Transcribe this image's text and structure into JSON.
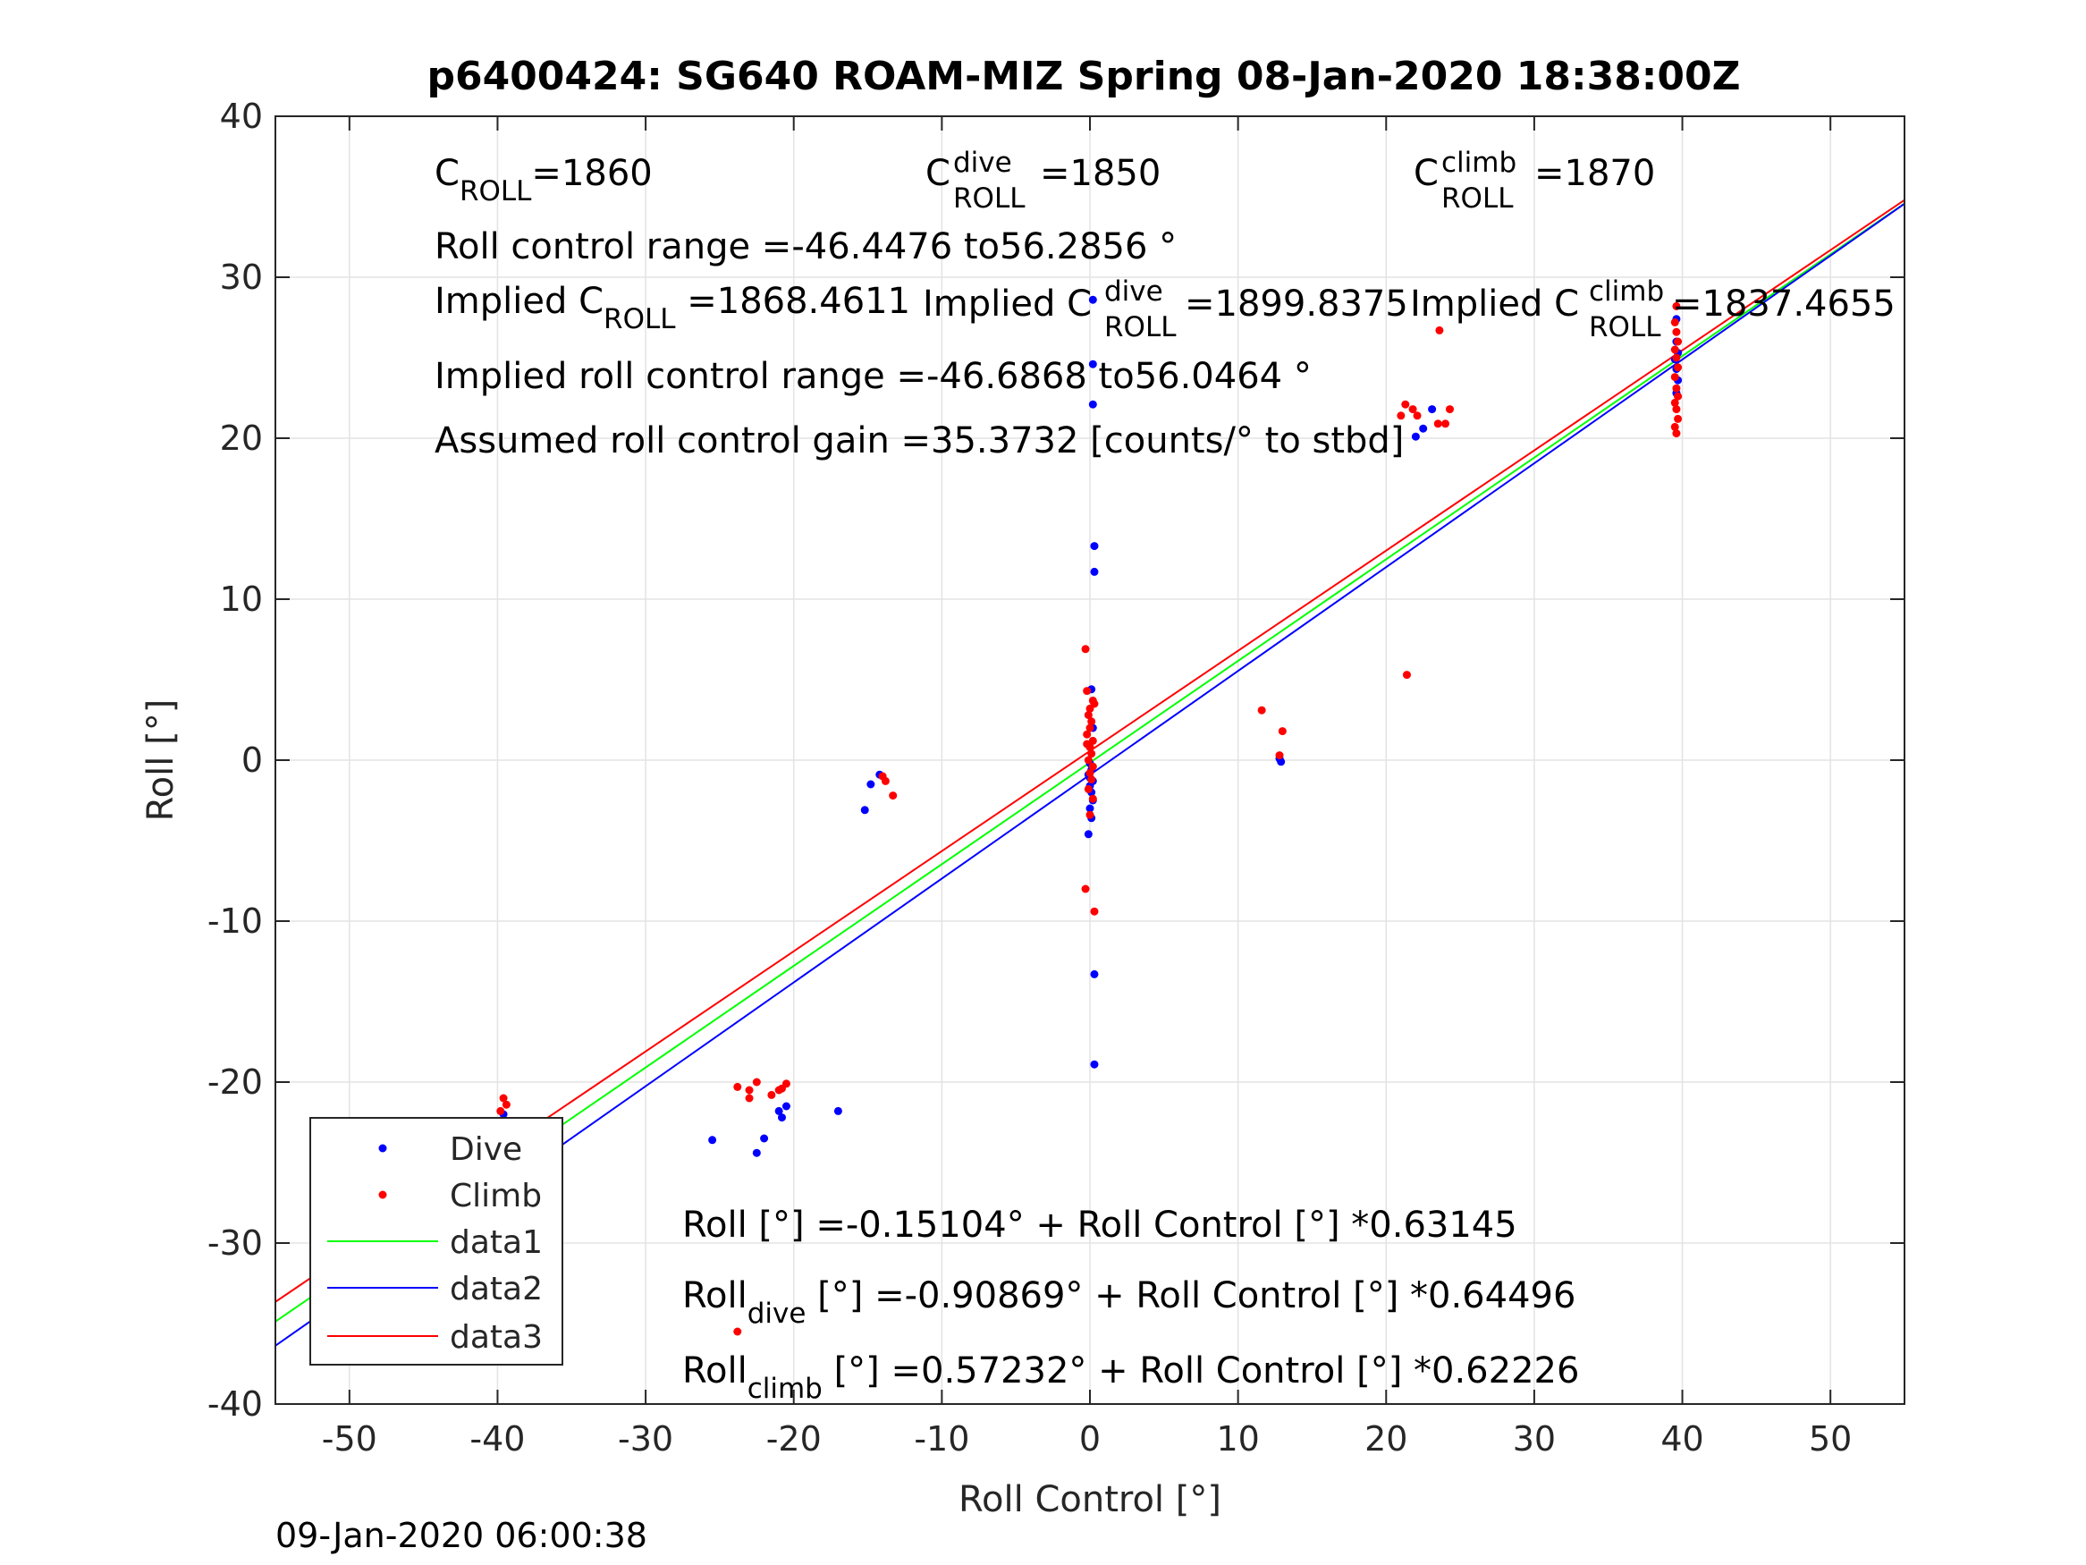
{
  "chart_data": {
    "type": "scatter",
    "title": "p6400424: SG640 ROAM-MIZ Spring 08-Jan-2020 18:38:00Z",
    "xlabel": "Roll Control [°]",
    "ylabel": "Roll [°]",
    "xlim": [
      -55,
      55
    ],
    "ylim": [
      -40,
      40
    ],
    "xticks": [
      -50,
      -40,
      -30,
      -20,
      -10,
      0,
      10,
      20,
      30,
      40,
      50
    ],
    "yticks": [
      -40,
      -30,
      -20,
      -10,
      0,
      10,
      20,
      30,
      40
    ],
    "xtick_labels": [
      "-50",
      "-40",
      "-30",
      "-20",
      "-10",
      "0",
      "10",
      "20",
      "30",
      "40",
      "50"
    ],
    "ytick_labels": [
      "-40",
      "-30",
      "-20",
      "-10",
      "0",
      "10",
      "20",
      "30",
      "40"
    ],
    "grid": true,
    "legend_placement": "bottom-left",
    "timestamp": "09-Jan-2020 06:00:38",
    "colors": {
      "dive": "#0000ff",
      "climb": "#ff0000",
      "data1": "#00ff00",
      "data2": "#0000ff",
      "data3": "#ff0000"
    },
    "series": [
      {
        "name": "Dive",
        "kind": "points",
        "color": "#0000ff",
        "points": [
          [
            -39.6,
            -22.0
          ],
          [
            -39.6,
            -23.0
          ],
          [
            -39.7,
            -24.0
          ],
          [
            -39.5,
            -25.0
          ],
          [
            -39.6,
            -26.0
          ],
          [
            -39.7,
            -27.0
          ],
          [
            -39.6,
            -28.0
          ],
          [
            -39.4,
            -25.5
          ],
          [
            -39.8,
            -23.5
          ],
          [
            -39.6,
            -27.5
          ],
          [
            -25.5,
            -23.6
          ],
          [
            -22.5,
            -24.4
          ],
          [
            -22.0,
            -23.5
          ],
          [
            -21.0,
            -21.8
          ],
          [
            -20.8,
            -22.2
          ],
          [
            -20.5,
            -21.5
          ],
          [
            -17.0,
            -21.8
          ],
          [
            -15.2,
            -3.1
          ],
          [
            -14.8,
            -1.5
          ],
          [
            -14.2,
            -0.9
          ],
          [
            0.0,
            -0.2
          ],
          [
            0.1,
            -0.6
          ],
          [
            -0.1,
            -0.9
          ],
          [
            0.2,
            -1.3
          ],
          [
            0.0,
            -1.6
          ],
          [
            0.1,
            -2.0
          ],
          [
            0.2,
            -2.5
          ],
          [
            0.0,
            -3.0
          ],
          [
            0.1,
            -3.6
          ],
          [
            -0.1,
            -4.6
          ],
          [
            0.2,
            2.0
          ],
          [
            0.1,
            4.4
          ],
          [
            0.0,
            -1.1
          ],
          [
            0.3,
            -13.3
          ],
          [
            0.3,
            -18.9
          ],
          [
            0.3,
            11.7
          ],
          [
            0.3,
            13.3
          ],
          [
            0.2,
            22.1
          ],
          [
            0.2,
            24.6
          ],
          [
            0.2,
            28.6
          ],
          [
            12.8,
            0.1
          ],
          [
            12.9,
            -0.1
          ],
          [
            22.5,
            20.6
          ],
          [
            22.0,
            20.1
          ],
          [
            23.1,
            21.8
          ],
          [
            39.6,
            22.8
          ],
          [
            39.7,
            23.6
          ],
          [
            39.6,
            24.3
          ],
          [
            39.5,
            24.9
          ],
          [
            39.7,
            25.3
          ],
          [
            39.6,
            26.0
          ],
          [
            39.6,
            27.4
          ]
        ]
      },
      {
        "name": "Climb",
        "kind": "points",
        "color": "#ff0000",
        "points": [
          [
            -39.6,
            -21.0
          ],
          [
            -39.4,
            -21.4
          ],
          [
            -39.8,
            -21.8
          ],
          [
            -39.6,
            -22.4
          ],
          [
            -39.5,
            -23.0
          ],
          [
            -39.7,
            -23.6
          ],
          [
            -39.6,
            -24.2
          ],
          [
            -39.4,
            -24.8
          ],
          [
            -39.8,
            -25.4
          ],
          [
            -39.6,
            -26.0
          ],
          [
            -39.5,
            -26.6
          ],
          [
            -39.7,
            -27.2
          ],
          [
            -39.6,
            -22.7
          ],
          [
            -23.8,
            -20.3
          ],
          [
            -23.0,
            -20.5
          ],
          [
            -22.5,
            -20.0
          ],
          [
            -23.0,
            -21.0
          ],
          [
            -21.5,
            -20.8
          ],
          [
            -21.0,
            -20.5
          ],
          [
            -20.5,
            -20.1
          ],
          [
            -20.8,
            -20.4
          ],
          [
            -23.8,
            -35.5
          ],
          [
            -14.0,
            -1.0
          ],
          [
            -13.8,
            -1.3
          ],
          [
            -13.3,
            -2.2
          ],
          [
            -0.3,
            6.9
          ],
          [
            -0.2,
            4.3
          ],
          [
            0.2,
            3.7
          ],
          [
            0.0,
            3.2
          ],
          [
            -0.1,
            2.8
          ],
          [
            0.1,
            2.4
          ],
          [
            0.0,
            2.0
          ],
          [
            -0.2,
            1.6
          ],
          [
            0.2,
            1.2
          ],
          [
            0.0,
            0.8
          ],
          [
            0.1,
            0.4
          ],
          [
            -0.1,
            0.0
          ],
          [
            0.2,
            -0.4
          ],
          [
            0.0,
            -0.8
          ],
          [
            0.1,
            -1.2
          ],
          [
            -0.1,
            -1.8
          ],
          [
            0.2,
            -2.4
          ],
          [
            0.0,
            -3.4
          ],
          [
            -0.3,
            -8.0
          ],
          [
            0.3,
            -9.4
          ],
          [
            0.3,
            3.5
          ],
          [
            -0.2,
            1.0
          ],
          [
            11.6,
            3.1
          ],
          [
            12.8,
            0.3
          ],
          [
            13.0,
            1.8
          ],
          [
            21.0,
            21.4
          ],
          [
            21.3,
            22.1
          ],
          [
            21.8,
            21.8
          ],
          [
            22.1,
            21.4
          ],
          [
            23.5,
            20.9
          ],
          [
            24.0,
            20.9
          ],
          [
            24.3,
            21.8
          ],
          [
            23.6,
            26.7
          ],
          [
            21.4,
            5.3
          ],
          [
            39.6,
            20.3
          ],
          [
            39.5,
            20.7
          ],
          [
            39.7,
            21.2
          ],
          [
            39.6,
            21.8
          ],
          [
            39.5,
            22.2
          ],
          [
            39.7,
            22.6
          ],
          [
            39.6,
            23.1
          ],
          [
            39.5,
            23.8
          ],
          [
            39.7,
            24.4
          ],
          [
            39.6,
            25.0
          ],
          [
            39.5,
            25.5
          ],
          [
            39.7,
            26.0
          ],
          [
            39.6,
            26.6
          ],
          [
            39.5,
            27.2
          ],
          [
            39.6,
            28.2
          ]
        ]
      },
      {
        "name": "data1",
        "kind": "line",
        "color": "#00ff00",
        "x": [
          -55,
          55
        ],
        "intercept": -0.15104,
        "slope": 0.63145
      },
      {
        "name": "data2",
        "kind": "line",
        "color": "#0000ff",
        "x": [
          -55,
          55
        ],
        "intercept": -0.90869,
        "slope": 0.64496
      },
      {
        "name": "data3",
        "kind": "line",
        "color": "#ff0000",
        "x": [
          -55,
          55
        ],
        "intercept": 0.57232,
        "slope": 0.62226
      }
    ],
    "legend": [
      "Dive",
      "Climb",
      "data1",
      "data2",
      "data3"
    ],
    "annotations": {
      "c_roll": {
        "sym": "C",
        "sub": "ROLL",
        "val": "=1860"
      },
      "c_roll_dive": {
        "sym": "C",
        "sup": "dive",
        "sub": "ROLL",
        "val": "=1850"
      },
      "c_roll_climb": {
        "sym": "C",
        "sup": "climb",
        "sub": "ROLL",
        "val": "=1870"
      },
      "roll_control_range": "Roll control range =-46.4476 to56.2856 °",
      "implied_c_roll": {
        "pre": "Implied C",
        "sub": "ROLL",
        "val": " =1868.4611"
      },
      "implied_c_roll_dive": {
        "pre": "Implied C",
        "sup": "dive",
        "sub": "ROLL",
        "val": " =1899.8375"
      },
      "implied_c_roll_climb": {
        "pre": "Implied C",
        "sup": "climb",
        "sub": "ROLL",
        "val": " =1837.4655"
      },
      "implied_range": "Implied roll control range =-46.6868 to56.0464 °",
      "gain": "Assumed roll control gain =35.3732 [counts/° to stbd]",
      "fit_all": "Roll [°] =-0.15104° + Roll Control [°] *0.63145",
      "fit_dive": {
        "pre": "Roll",
        "sub": "dive",
        "rest": " [°] =-0.90869° + Roll Control [°] *0.64496"
      },
      "fit_climb": {
        "pre": "Roll",
        "sub": "climb",
        "rest": " [°] =0.57232° + Roll Control [°] *0.62226"
      }
    }
  }
}
